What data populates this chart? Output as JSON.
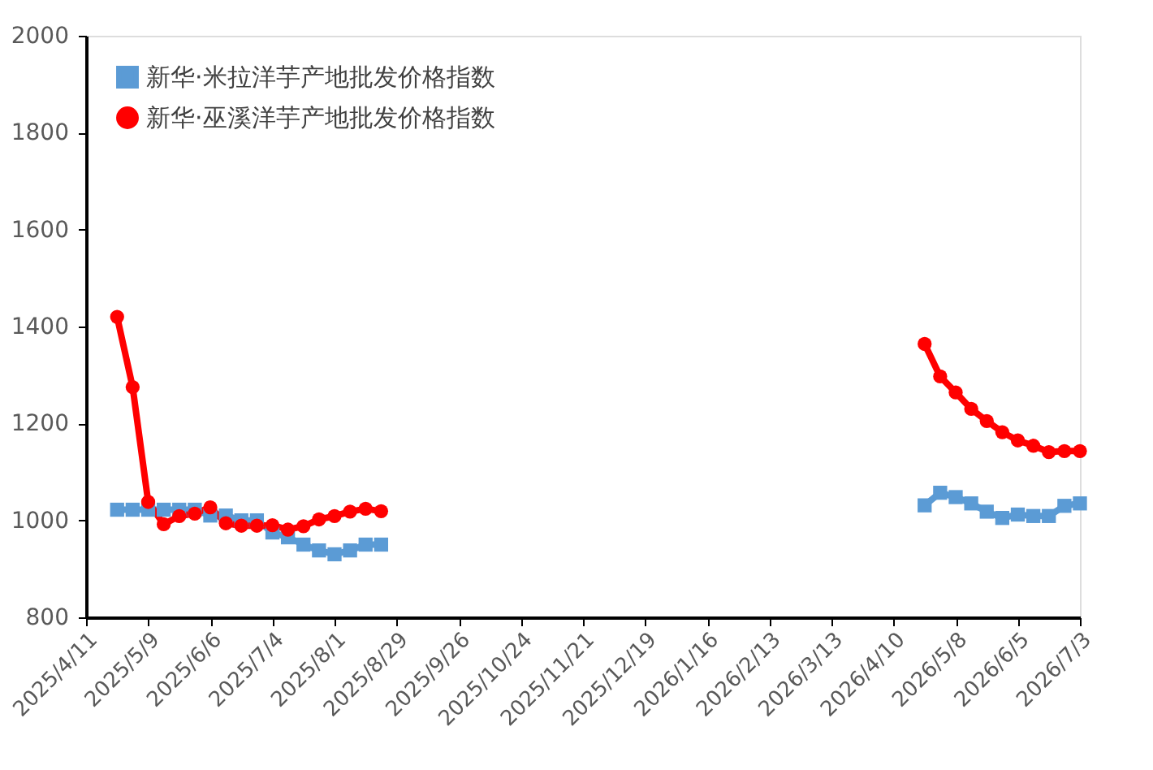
{
  "chart_data": {
    "type": "line",
    "series": [
      {
        "name": "新华·米拉洋芋产地批发价格指数",
        "color": "#5b9bd5",
        "marker": "square",
        "x": [
          "2025-04-25",
          "2025-05-02",
          "2025-05-09",
          "2025-05-16",
          "2025-05-23",
          "2025-05-30",
          "2025-06-06",
          "2025-06-13",
          "2025-06-20",
          "2025-06-27",
          "2025-07-04",
          "2025-07-11",
          "2025-07-18",
          "2025-07-25",
          "2025-08-01",
          "2025-08-08",
          "2025-08-15",
          "2025-08-22",
          "2025-08-29",
          "2026-04-24",
          "2026-05-01",
          "2026-05-08",
          "2026-05-15",
          "2026-05-22",
          "2026-05-29",
          "2026-06-05",
          "2026-06-12",
          "2026-06-19",
          "2026-06-26",
          "2026-07-03"
        ],
        "values": [
          1022,
          1022,
          1022,
          1022,
          1022,
          1022,
          1010,
          1010,
          1000,
          1000,
          975,
          965,
          950,
          938,
          930,
          938,
          950,
          950,
          null,
          1031,
          1057,
          1048,
          1035,
          1018,
          1005,
          1012,
          1009,
          1009,
          1030,
          1035
        ]
      },
      {
        "name": "新华·巫溪洋芋产地批发价格指数",
        "color": "#ff0000",
        "marker": "circle",
        "x": [
          "2025-04-25",
          "2025-05-02",
          "2025-05-09",
          "2025-05-16",
          "2025-05-23",
          "2025-05-30",
          "2025-06-06",
          "2025-06-13",
          "2025-06-20",
          "2025-06-27",
          "2025-07-04",
          "2025-07-11",
          "2025-07-18",
          "2025-07-25",
          "2025-08-01",
          "2025-08-08",
          "2025-08-15",
          "2025-08-22",
          "2025-08-29",
          "2026-04-24",
          "2026-05-01",
          "2026-05-08",
          "2026-05-15",
          "2026-05-22",
          "2026-05-29",
          "2026-06-05",
          "2026-06-12",
          "2026-06-19",
          "2026-06-26",
          "2026-07-03"
        ],
        "values": [
          1420,
          1275,
          1038,
          992,
          1009,
          1014,
          1027,
          994,
          989,
          989,
          990,
          981,
          988,
          1002,
          1009,
          1018,
          1024,
          1019,
          null,
          1364,
          1297,
          1264,
          1230,
          1205,
          1182,
          1165,
          1154,
          1141,
          1143,
          1143
        ]
      }
    ],
    "xlim": [
      "2025-04-11",
      "2026-07-03"
    ],
    "xticks": [
      {
        "value": "2025-04-11",
        "label": "2025/4/11"
      },
      {
        "value": "2025-05-09",
        "label": "2025/5/9"
      },
      {
        "value": "2025-06-06",
        "label": "2025/6/6"
      },
      {
        "value": "2025-07-04",
        "label": "2025/7/4"
      },
      {
        "value": "2025-08-01",
        "label": "2025/8/1"
      },
      {
        "value": "2025-08-29",
        "label": "2025/8/29"
      },
      {
        "value": "2025-09-26",
        "label": "2025/9/26"
      },
      {
        "value": "2025-10-24",
        "label": "2025/10/24"
      },
      {
        "value": "2025-11-21",
        "label": "2025/11/21"
      },
      {
        "value": "2025-12-19",
        "label": "2025/12/19"
      },
      {
        "value": "2026-01-16",
        "label": "2026/1/16"
      },
      {
        "value": "2026-02-13",
        "label": "2026/2/13"
      },
      {
        "value": "2026-03-13",
        "label": "2026/3/13"
      },
      {
        "value": "2026-04-10",
        "label": "2026/4/10"
      },
      {
        "value": "2026-05-08",
        "label": "2026/5/8"
      },
      {
        "value": "2026-06-05",
        "label": "2026/6/5"
      },
      {
        "value": "2026-07-03",
        "label": "2026/7/3"
      }
    ],
    "ylim": [
      800,
      2000
    ],
    "yticks": [
      800,
      1000,
      1200,
      1400,
      1600,
      1800,
      2000
    ],
    "grid": false,
    "legend": "top left",
    "line_style": "solid"
  }
}
